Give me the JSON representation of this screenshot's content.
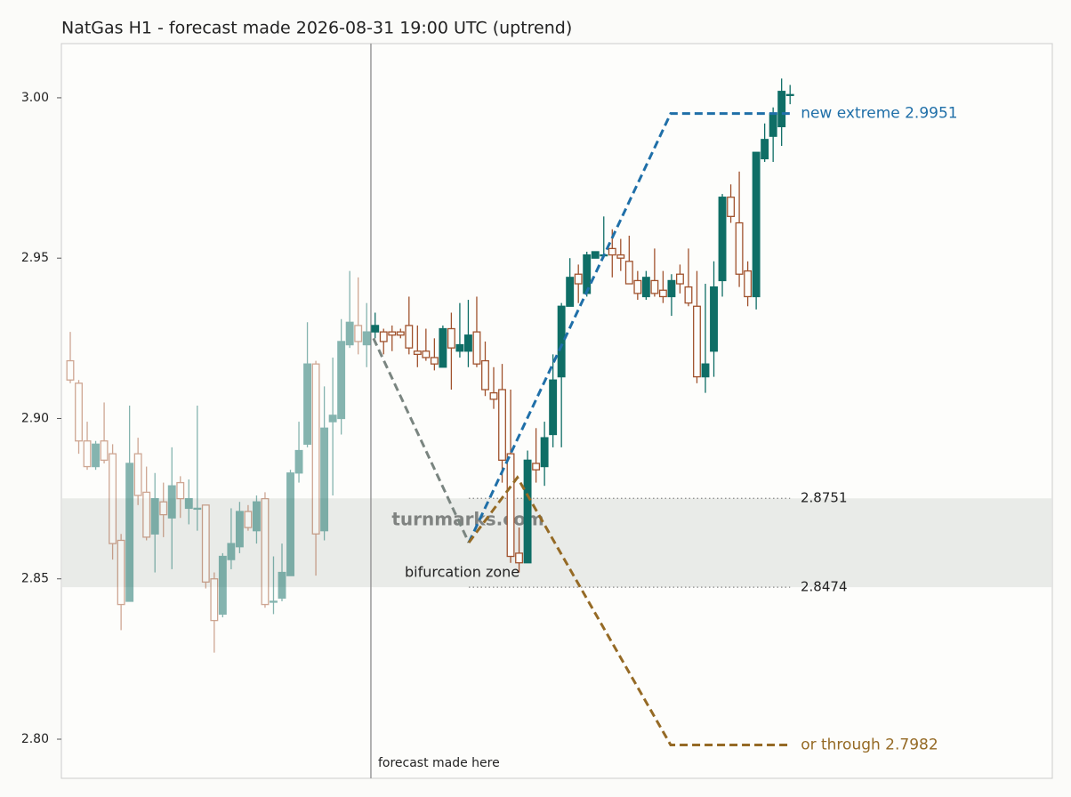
{
  "chart_data": {
    "type": "candlestick",
    "title": "NatGas H1 - forecast made 2026-08-31 19:00 UTC (uptrend)",
    "ylim": [
      2.7878,
      3.0169
    ],
    "yticks": [
      {
        "value": 2.8,
        "label": "2.80"
      },
      {
        "value": 2.85,
        "label": "2.85"
      },
      {
        "value": 2.9,
        "label": "2.90"
      },
      {
        "value": 2.95,
        "label": "2.95"
      },
      {
        "value": 3.0,
        "label": "3.00"
      }
    ],
    "up_color": "#0f6e66",
    "down_color": "#a0522d",
    "history": {
      "open": [
        2.918,
        2.911,
        2.893,
        2.885,
        2.893,
        2.889,
        2.862,
        2.843,
        2.889,
        2.877,
        2.864,
        2.874,
        2.869,
        2.88,
        2.872,
        2.872,
        2.873,
        2.85,
        2.839,
        2.856,
        2.86,
        2.871,
        2.865,
        2.875,
        2.843,
        2.844,
        2.851,
        2.883,
        2.892,
        2.917,
        2.865,
        2.899,
        2.9,
        2.923,
        2.929,
        2.923
      ],
      "high": [
        2.927,
        2.912,
        2.899,
        2.893,
        2.905,
        2.892,
        2.864,
        2.904,
        2.894,
        2.885,
        2.883,
        2.88,
        2.891,
        2.882,
        2.881,
        2.904,
        2.873,
        2.852,
        2.858,
        2.872,
        2.874,
        2.873,
        2.876,
        2.877,
        2.857,
        2.861,
        2.884,
        2.899,
        2.93,
        2.918,
        2.91,
        2.919,
        2.931,
        2.946,
        2.944,
        2.936
      ],
      "low": [
        2.911,
        2.889,
        2.884,
        2.884,
        2.886,
        2.856,
        2.834,
        2.843,
        2.873,
        2.862,
        2.852,
        2.863,
        2.853,
        2.869,
        2.867,
        2.865,
        2.847,
        2.827,
        2.838,
        2.853,
        2.858,
        2.865,
        2.861,
        2.841,
        2.839,
        2.843,
        2.851,
        2.88,
        2.891,
        2.851,
        2.862,
        2.876,
        2.895,
        2.922,
        2.92,
        2.916
      ],
      "close": [
        2.912,
        2.893,
        2.885,
        2.892,
        2.887,
        2.861,
        2.842,
        2.886,
        2.876,
        2.863,
        2.875,
        2.87,
        2.879,
        2.875,
        2.875,
        2.872,
        2.849,
        2.837,
        2.857,
        2.861,
        2.871,
        2.866,
        2.874,
        2.842,
        2.843,
        2.852,
        2.883,
        2.89,
        2.917,
        2.864,
        2.897,
        2.901,
        2.924,
        2.93,
        2.924,
        2.927
      ]
    },
    "forecast": {
      "open": [
        2.927,
        2.927,
        2.927,
        2.927,
        2.929,
        2.921,
        2.921,
        2.919,
        2.916,
        2.928,
        2.921,
        2.921,
        2.927,
        2.918,
        2.908,
        2.909,
        2.889,
        2.858,
        2.855,
        2.886,
        2.885,
        2.895,
        2.913,
        2.935,
        2.945,
        2.939,
        2.95,
        2.951,
        2.953,
        2.951,
        2.949,
        2.943,
        2.938,
        2.943,
        2.94,
        2.938,
        2.945,
        2.941,
        2.935,
        2.913,
        2.921,
        2.943,
        2.969,
        2.961,
        2.946,
        2.938,
        2.981,
        2.988,
        2.991,
        3.001
      ],
      "high": [
        2.933,
        2.928,
        2.929,
        2.928,
        2.938,
        2.929,
        2.928,
        2.925,
        2.929,
        2.933,
        2.936,
        2.937,
        2.938,
        2.924,
        2.916,
        2.917,
        2.909,
        2.866,
        2.89,
        2.897,
        2.899,
        2.92,
        2.936,
        2.95,
        2.948,
        2.952,
        2.952,
        2.963,
        2.959,
        2.956,
        2.957,
        2.946,
        2.946,
        2.953,
        2.946,
        2.945,
        2.948,
        2.953,
        2.946,
        2.942,
        2.949,
        2.97,
        2.973,
        2.977,
        2.949,
        2.983,
        2.992,
        2.997,
        3.006,
        3.004
      ],
      "low": [
        2.925,
        2.92,
        2.921,
        2.925,
        2.92,
        2.916,
        2.918,
        2.915,
        2.916,
        2.909,
        2.919,
        2.916,
        2.916,
        2.907,
        2.903,
        2.88,
        2.855,
        2.852,
        2.855,
        2.88,
        2.879,
        2.891,
        2.891,
        2.935,
        2.936,
        2.938,
        2.95,
        2.95,
        2.944,
        2.946,
        2.942,
        2.937,
        2.937,
        2.938,
        2.936,
        2.932,
        2.939,
        2.935,
        2.911,
        2.908,
        2.913,
        2.938,
        2.961,
        2.941,
        2.935,
        2.934,
        2.98,
        2.98,
        2.985,
        2.998
      ],
      "close": [
        2.929,
        2.924,
        2.926,
        2.926,
        2.922,
        2.92,
        2.919,
        2.917,
        2.928,
        2.922,
        2.923,
        2.926,
        2.917,
        2.909,
        2.906,
        2.887,
        2.857,
        2.855,
        2.887,
        2.884,
        2.894,
        2.912,
        2.935,
        2.944,
        2.942,
        2.951,
        2.952,
        2.951,
        2.951,
        2.95,
        2.942,
        2.939,
        2.944,
        2.939,
        2.938,
        2.943,
        2.942,
        2.936,
        2.913,
        2.917,
        2.941,
        2.969,
        2.963,
        2.945,
        2.938,
        2.983,
        2.987,
        2.995,
        3.002,
        3.001
      ]
    },
    "forecast_label": "forecast made here",
    "zone": [
      2.8474,
      2.8751
    ],
    "zone_label": "bifurcation zone",
    "levels": [
      2.8751,
      2.8474
    ],
    "level_x": [
      47.06,
      85
    ],
    "scenarios": [
      {
        "color": "#7a8580",
        "x": [
          35.8,
          47.06
        ],
        "values": [
          2.925,
          2.8613
        ]
      },
      {
        "color": "#1f6fa8",
        "x": [
          47.06,
          70.9,
          85
        ],
        "values": [
          2.8613,
          2.9951,
          2.9951
        ],
        "label": "new extreme 2.9951"
      },
      {
        "color": "#956a25",
        "x": [
          47.06,
          52.8,
          70.9,
          85
        ],
        "values": [
          2.8613,
          2.8816,
          2.7982,
          2.7982
        ],
        "label": "or through 2.7982"
      }
    ],
    "watermark": "turnmarks.com"
  }
}
